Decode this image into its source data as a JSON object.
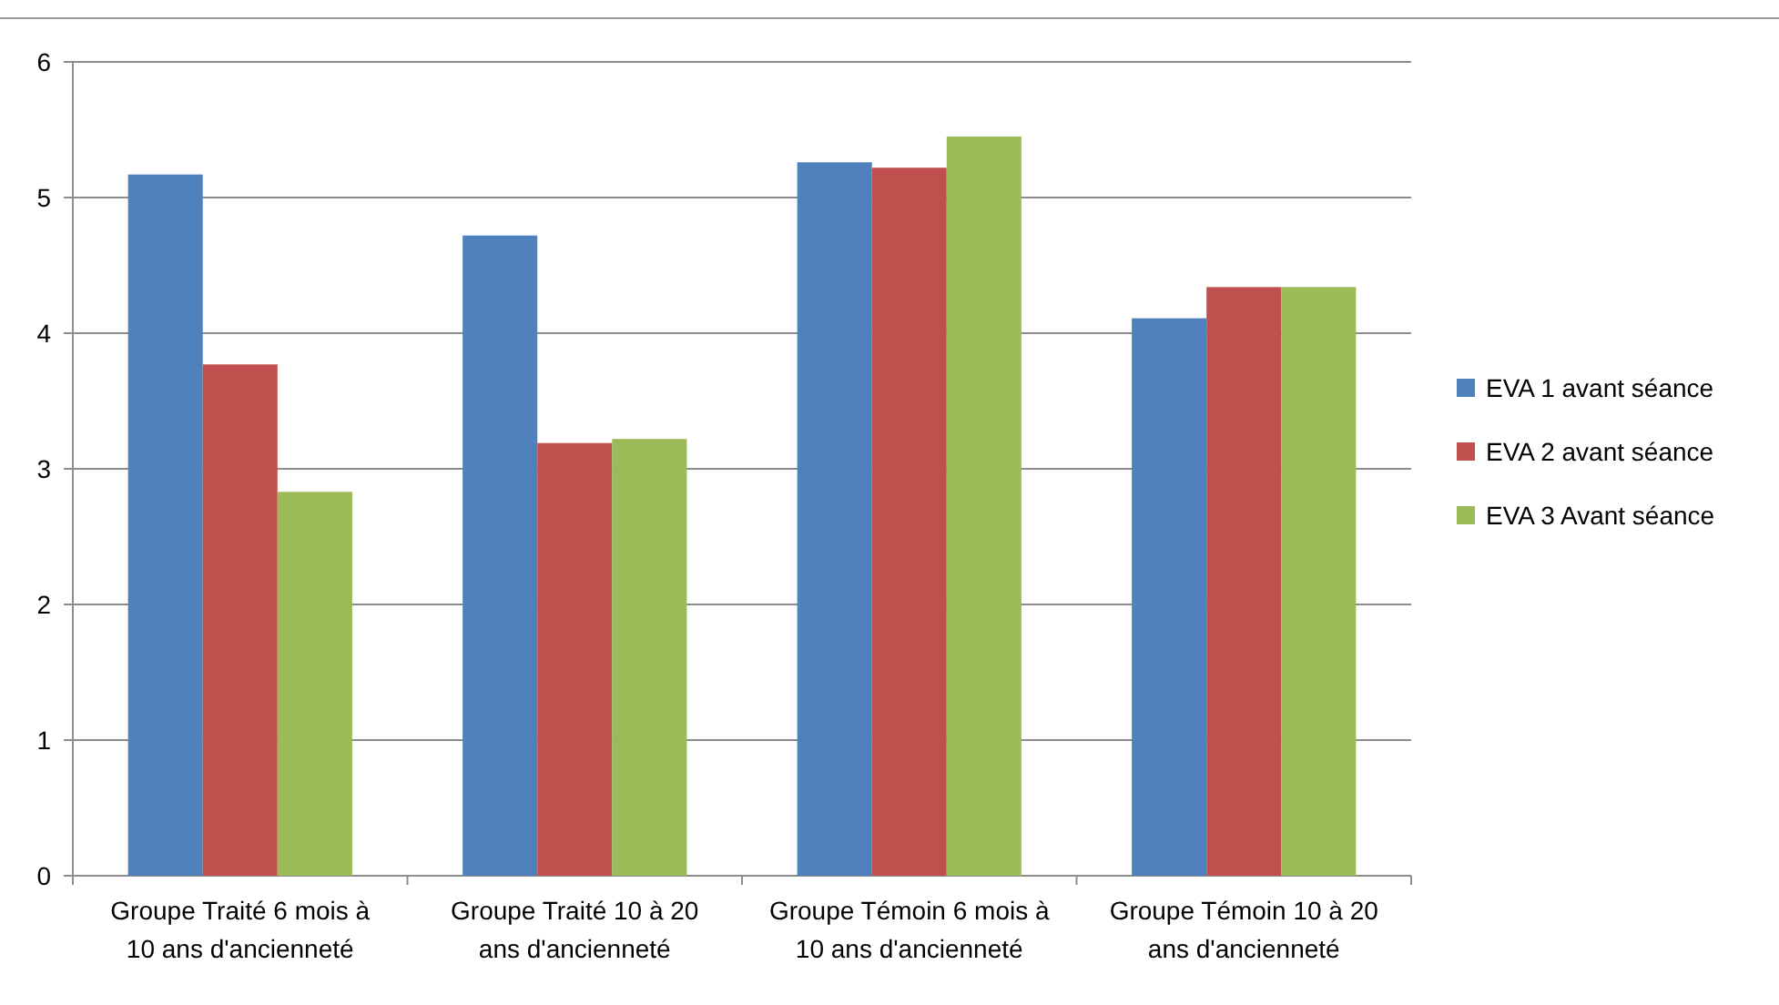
{
  "chart_data": {
    "type": "bar",
    "categories": [
      "Groupe Traité 6 mois à 10 ans d'ancienneté",
      "Groupe Traité 10 à 20 ans d'ancienneté",
      "Groupe Témoin 6 mois à 10 ans d'ancienneté",
      "Groupe Témoin 10 à 20 ans d'ancienneté"
    ],
    "series": [
      {
        "name": "EVA 1 avant séance",
        "color": "#4f81bd",
        "values": [
          5.17,
          4.72,
          5.26,
          4.11
        ]
      },
      {
        "name": "EVA 2 avant séance",
        "color": "#c0504d",
        "values": [
          3.77,
          3.19,
          5.22,
          4.34
        ]
      },
      {
        "name": "EVA 3 Avant séance",
        "color": "#9bbb59",
        "values": [
          2.83,
          3.22,
          5.45,
          4.34
        ]
      }
    ],
    "ylim": [
      0,
      6
    ],
    "yticks": [
      0,
      1,
      2,
      3,
      4,
      5,
      6
    ],
    "grid": "y",
    "legend": "right"
  }
}
